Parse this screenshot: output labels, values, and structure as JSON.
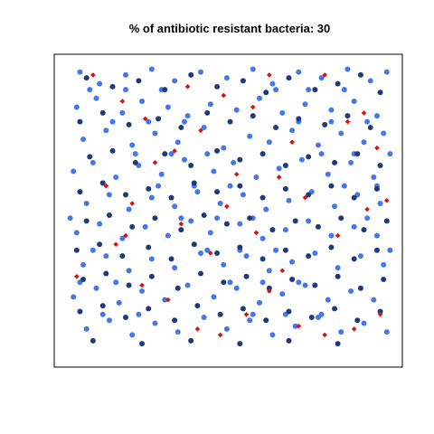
{
  "chart_data": {
    "type": "scatter",
    "title": "% of antibiotic resistant bacteria: 30",
    "xlabel": "",
    "ylabel": "",
    "xlim": [
      0,
      100
    ],
    "ylim": [
      0,
      100
    ],
    "axes_visible": false,
    "grid": false,
    "legend": "none",
    "series": [
      {
        "color": "#4477ee",
        "points": [
          [
            4,
            97
          ],
          [
            10,
            93
          ],
          [
            18,
            96
          ],
          [
            26,
            98
          ],
          [
            33,
            94
          ],
          [
            41,
            97
          ],
          [
            49,
            95
          ],
          [
            57,
            98
          ],
          [
            63,
            93
          ],
          [
            71,
            97
          ],
          [
            78,
            95
          ],
          [
            86,
            98
          ],
          [
            93,
            94
          ],
          [
            98,
            97
          ],
          [
            3,
            85
          ],
          [
            9,
            88
          ],
          [
            17,
            83
          ],
          [
            23,
            87
          ],
          [
            31,
            85
          ],
          [
            37,
            82
          ],
          [
            44,
            86
          ],
          [
            52,
            84
          ],
          [
            59,
            88
          ],
          [
            66,
            83
          ],
          [
            73,
            86
          ],
          [
            81,
            84
          ],
          [
            88,
            87
          ],
          [
            95,
            82
          ],
          [
            5,
            74
          ],
          [
            12,
            77
          ],
          [
            20,
            72
          ],
          [
            27,
            76
          ],
          [
            34,
            73
          ],
          [
            42,
            78
          ],
          [
            48,
            71
          ],
          [
            56,
            75
          ],
          [
            62,
            73
          ],
          [
            69,
            77
          ],
          [
            77,
            72
          ],
          [
            84,
            76
          ],
          [
            91,
            73
          ],
          [
            97,
            76
          ],
          [
            2,
            63
          ],
          [
            8,
            66
          ],
          [
            15,
            61
          ],
          [
            22,
            65
          ],
          [
            29,
            62
          ],
          [
            36,
            67
          ],
          [
            45,
            63
          ],
          [
            51,
            66
          ],
          [
            58,
            61
          ],
          [
            65,
            64
          ],
          [
            72,
            67
          ],
          [
            80,
            62
          ],
          [
            87,
            66
          ],
          [
            94,
            61
          ],
          [
            6,
            52
          ],
          [
            13,
            55
          ],
          [
            19,
            50
          ],
          [
            26,
            54
          ],
          [
            33,
            51
          ],
          [
            40,
            56
          ],
          [
            47,
            52
          ],
          [
            54,
            55
          ],
          [
            61,
            50
          ],
          [
            68,
            53
          ],
          [
            75,
            56
          ],
          [
            82,
            51
          ],
          [
            89,
            55
          ],
          [
            96,
            52
          ],
          [
            3,
            42
          ],
          [
            10,
            45
          ],
          [
            17,
            40
          ],
          [
            24,
            44
          ],
          [
            31,
            41
          ],
          [
            38,
            46
          ],
          [
            44,
            42
          ],
          [
            53,
            45
          ],
          [
            60,
            40
          ],
          [
            67,
            43
          ],
          [
            74,
            46
          ],
          [
            81,
            41
          ],
          [
            88,
            44
          ],
          [
            95,
            41
          ],
          [
            5,
            31
          ],
          [
            12,
            34
          ],
          [
            19,
            29
          ],
          [
            26,
            33
          ],
          [
            33,
            30
          ],
          [
            41,
            35
          ],
          [
            48,
            31
          ],
          [
            55,
            34
          ],
          [
            62,
            29
          ],
          [
            69,
            32
          ],
          [
            76,
            35
          ],
          [
            83,
            30
          ],
          [
            90,
            34
          ],
          [
            97,
            31
          ],
          [
            2,
            20
          ],
          [
            9,
            23
          ],
          [
            16,
            18
          ],
          [
            23,
            22
          ],
          [
            30,
            19
          ],
          [
            37,
            24
          ],
          [
            45,
            20
          ],
          [
            52,
            23
          ],
          [
            59,
            18
          ],
          [
            66,
            21
          ],
          [
            73,
            24
          ],
          [
            80,
            19
          ],
          [
            87,
            22
          ],
          [
            94,
            19
          ],
          [
            6,
            9
          ],
          [
            13,
            12
          ],
          [
            20,
            7
          ],
          [
            27,
            11
          ],
          [
            34,
            8
          ],
          [
            42,
            13
          ],
          [
            49,
            9
          ],
          [
            56,
            12
          ],
          [
            63,
            7
          ],
          [
            70,
            10
          ],
          [
            77,
            13
          ],
          [
            84,
            8
          ],
          [
            91,
            11
          ],
          [
            98,
            8
          ],
          [
            7,
            91
          ],
          [
            14,
            80
          ],
          [
            21,
            69
          ],
          [
            28,
            58
          ],
          [
            35,
            47
          ],
          [
            43,
            36
          ],
          [
            50,
            25
          ],
          [
            57,
            14
          ],
          [
            64,
            91
          ],
          [
            71,
            80
          ],
          [
            78,
            69
          ],
          [
            85,
            58
          ],
          [
            92,
            47
          ],
          [
            99,
            36
          ],
          [
            4,
            25
          ],
          [
            11,
            14
          ],
          [
            18,
            91
          ],
          [
            25,
            80
          ],
          [
            32,
            69
          ],
          [
            39,
            58
          ],
          [
            46,
            47
          ],
          [
            53,
            36
          ],
          [
            60,
            25
          ],
          [
            67,
            14
          ],
          [
            74,
            91
          ],
          [
            81,
            80
          ],
          [
            88,
            69
          ],
          [
            95,
            58
          ],
          [
            1,
            47
          ],
          [
            8,
            36
          ],
          [
            15,
            25
          ],
          [
            22,
            14
          ],
          [
            29,
            91
          ],
          [
            36,
            80
          ],
          [
            43,
            69
          ],
          [
            50,
            58
          ],
          [
            57,
            47
          ],
          [
            64,
            36
          ],
          [
            71,
            25
          ],
          [
            78,
            14
          ],
          [
            85,
            91
          ],
          [
            92,
            80
          ],
          [
            99,
            69
          ]
        ]
      },
      {
        "color": "#1f3a7a",
        "points": [
          [
            6,
            95
          ],
          [
            14,
            92
          ],
          [
            22,
            94
          ],
          [
            30,
            91
          ],
          [
            38,
            96
          ],
          [
            46,
            92
          ],
          [
            54,
            94
          ],
          [
            61,
            90
          ],
          [
            68,
            95
          ],
          [
            76,
            91
          ],
          [
            83,
            93
          ],
          [
            90,
            96
          ],
          [
            96,
            90
          ],
          [
            4,
            80
          ],
          [
            11,
            83
          ],
          [
            19,
            79
          ],
          [
            28,
            81
          ],
          [
            35,
            78
          ],
          [
            43,
            83
          ],
          [
            50,
            80
          ],
          [
            57,
            82
          ],
          [
            64,
            78
          ],
          [
            71,
            81
          ],
          [
            79,
            79
          ],
          [
            86,
            82
          ],
          [
            93,
            78
          ],
          [
            7,
            68
          ],
          [
            14,
            70
          ],
          [
            21,
            66
          ],
          [
            30,
            69
          ],
          [
            38,
            65
          ],
          [
            46,
            70
          ],
          [
            53,
            67
          ],
          [
            60,
            69
          ],
          [
            67,
            65
          ],
          [
            74,
            68
          ],
          [
            82,
            66
          ],
          [
            89,
            69
          ],
          [
            96,
            65
          ],
          [
            4,
            56
          ],
          [
            11,
            59
          ],
          [
            18,
            55
          ],
          [
            25,
            57
          ],
          [
            32,
            54
          ],
          [
            39,
            59
          ],
          [
            46,
            56
          ],
          [
            53,
            58
          ],
          [
            60,
            54
          ],
          [
            67,
            57
          ],
          [
            74,
            55
          ],
          [
            81,
            58
          ],
          [
            88,
            54
          ],
          [
            95,
            57
          ],
          [
            6,
            46
          ],
          [
            13,
            48
          ],
          [
            20,
            44
          ],
          [
            27,
            47
          ],
          [
            35,
            43
          ],
          [
            42,
            48
          ],
          [
            49,
            45
          ],
          [
            56,
            47
          ],
          [
            63,
            43
          ],
          [
            70,
            46
          ],
          [
            77,
            44
          ],
          [
            84,
            47
          ],
          [
            91,
            43
          ],
          [
            98,
            46
          ],
          [
            3,
            36
          ],
          [
            10,
            38
          ],
          [
            17,
            34
          ],
          [
            25,
            37
          ],
          [
            32,
            33
          ],
          [
            39,
            38
          ],
          [
            46,
            35
          ],
          [
            53,
            37
          ],
          [
            60,
            33
          ],
          [
            67,
            36
          ],
          [
            74,
            34
          ],
          [
            81,
            37
          ],
          [
            88,
            33
          ],
          [
            95,
            36
          ],
          [
            5,
            26
          ],
          [
            12,
            28
          ],
          [
            19,
            24
          ],
          [
            26,
            27
          ],
          [
            34,
            23
          ],
          [
            41,
            28
          ],
          [
            48,
            25
          ],
          [
            55,
            27
          ],
          [
            62,
            23
          ],
          [
            69,
            26
          ],
          [
            76,
            24
          ],
          [
            83,
            27
          ],
          [
            90,
            23
          ],
          [
            97,
            26
          ],
          [
            4,
            15
          ],
          [
            11,
            17
          ],
          [
            18,
            13
          ],
          [
            25,
            16
          ],
          [
            33,
            12
          ],
          [
            40,
            17
          ],
          [
            47,
            14
          ],
          [
            54,
            16
          ],
          [
            61,
            12
          ],
          [
            68,
            15
          ],
          [
            75,
            13
          ],
          [
            82,
            16
          ],
          [
            89,
            12
          ],
          [
            96,
            15
          ],
          [
            8,
            5
          ],
          [
            23,
            4
          ],
          [
            38,
            5
          ],
          [
            53,
            4
          ],
          [
            68,
            5
          ],
          [
            83,
            4
          ]
        ]
      },
      {
        "color": "#dd1111",
        "points": [
          [
            8,
            96
          ],
          [
            17,
            87
          ],
          [
            24,
            81
          ],
          [
            37,
            92
          ],
          [
            41,
            77
          ],
          [
            48,
            89
          ],
          [
            52,
            62
          ],
          [
            62,
            96
          ],
          [
            69,
            73
          ],
          [
            79,
            96
          ],
          [
            86,
            80
          ],
          [
            95,
            71
          ],
          [
            12,
            58
          ],
          [
            20,
            52
          ],
          [
            27,
            66
          ],
          [
            35,
            45
          ],
          [
            44,
            35
          ],
          [
            49,
            51
          ],
          [
            58,
            42
          ],
          [
            66,
            29
          ],
          [
            73,
            54
          ],
          [
            83,
            41
          ],
          [
            92,
            50
          ],
          [
            98,
            53
          ],
          [
            3,
            27
          ],
          [
            15,
            38
          ],
          [
            23,
            24
          ],
          [
            31,
            19
          ],
          [
            40,
            9
          ],
          [
            47,
            7
          ],
          [
            55,
            14
          ],
          [
            62,
            22
          ],
          [
            71,
            10
          ],
          [
            79,
            7
          ],
          [
            88,
            9
          ],
          [
            96,
            14
          ],
          [
            33,
            70
          ],
          [
            57,
            85
          ],
          [
            65,
            61
          ],
          [
            18,
            41
          ],
          [
            91,
            83
          ]
        ]
      }
    ]
  }
}
